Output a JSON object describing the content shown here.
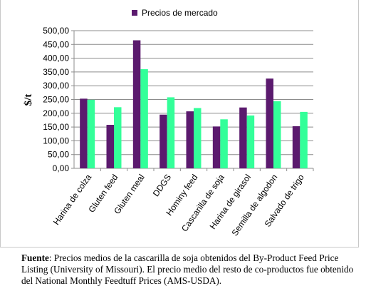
{
  "chart_data": {
    "type": "bar",
    "categories": [
      "Harina de colza",
      "Gluten feed",
      "Gluten meal",
      "DDGS",
      "Hominy feed",
      "Cascarilla de soja",
      "Harina de girasol",
      "Semilla de algodon",
      "Salvado de trigo"
    ],
    "series": [
      {
        "name": "Precios de mercado",
        "values": [
          253,
          158,
          465,
          195,
          207,
          152,
          221,
          326,
          153
        ],
        "color": "#5b1a6e"
      },
      {
        "name": "",
        "values": [
          249,
          222,
          360,
          258,
          219,
          178,
          192,
          244,
          205
        ],
        "color": "#33ff99"
      }
    ],
    "ylabel": "$/t",
    "ylim": [
      0,
      500
    ],
    "yticks": [
      "0,00",
      "50,00",
      "100,00",
      "150,00",
      "200,00",
      "250,00",
      "300,00",
      "350,00",
      "400,00",
      "450,00",
      "500,00"
    ],
    "grid": true,
    "legend": "top-center"
  },
  "source": {
    "label": "Fuente",
    "text": ": Precios medios de la cascarilla de soja obtenidos del By-Product Feed Price Listing (University of Missouri). El precio medio del resto de co-productos fue obtenido del National Monthly Feedtuff Prices (AMS-USDA)."
  }
}
